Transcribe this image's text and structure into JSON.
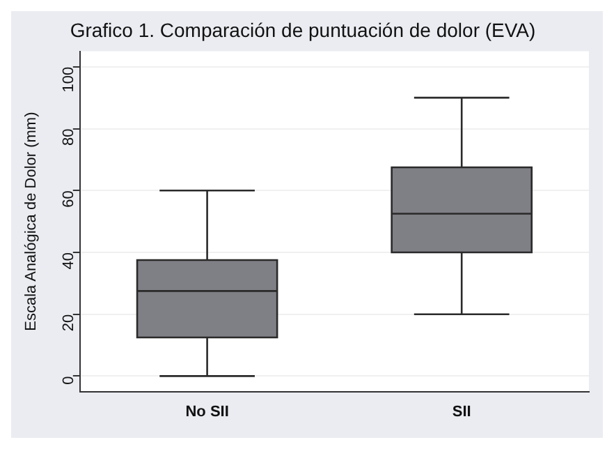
{
  "chart_data": {
    "type": "box",
    "title": "Grafico 1. Comparación de puntuación de dolor (EVA)",
    "ylabel": "Escala Analógica de Dolor (mm)",
    "categories": [
      "No SII",
      "SII"
    ],
    "color": "#7f7f86",
    "boxes": [
      {
        "low": 0,
        "q1": 12.5,
        "median": 27.5,
        "q3": 37.5,
        "high": 60
      },
      {
        "low": 20,
        "q1": 40,
        "median": 52.5,
        "q3": 67.5,
        "high": 90
      }
    ],
    "ylim": [
      -5,
      105
    ],
    "yticks": [
      0,
      20,
      40,
      60,
      80,
      100
    ],
    "grid": "y",
    "legend": false
  }
}
